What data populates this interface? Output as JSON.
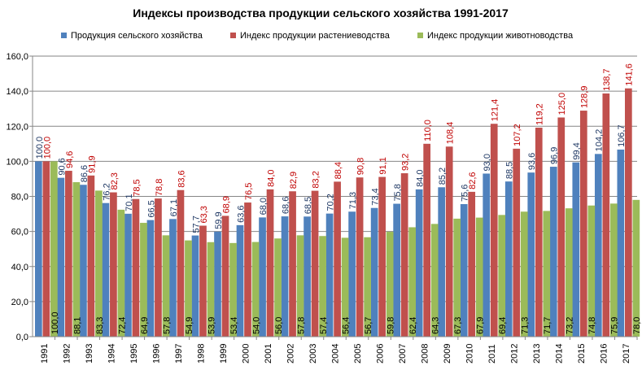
{
  "chart_data": {
    "type": "bar",
    "title": "Индексы производства продукции сельского хозяйства 1991-2017",
    "xlabel": "",
    "ylabel": "",
    "ylim": [
      0,
      160
    ],
    "yticks": [
      "0,0",
      "20,0",
      "40,0",
      "60,0",
      "80,0",
      "100,0",
      "120,0",
      "140,0",
      "160,0"
    ],
    "grid": true,
    "legend_position": "top",
    "categories": [
      "1991",
      "1992",
      "1993",
      "1994",
      "1995",
      "1996",
      "1997",
      "1998",
      "1999",
      "2000",
      "2001",
      "2002",
      "2003",
      "2004",
      "2005",
      "2006",
      "2007",
      "2008",
      "2009",
      "2010",
      "2011",
      "2012",
      "2013",
      "2014",
      "2015",
      "2016",
      "2017"
    ],
    "series": [
      {
        "name": "Продукция сельского хозяйства",
        "color": "#4f81bd",
        "label_color": "#1f3864",
        "values": [
          100.0,
          90.6,
          86.6,
          76.2,
          70.1,
          66.5,
          67.1,
          57.7,
          59.9,
          63.6,
          68.0,
          68.6,
          68.5,
          70.2,
          71.3,
          73.4,
          75.8,
          84.0,
          85.2,
          75.6,
          93.0,
          88.5,
          93.6,
          96.9,
          99.4,
          104.2,
          106.7
        ]
      },
      {
        "name": "Индекс продукции растениеводства",
        "color": "#c0504d",
        "label_color": "#c00000",
        "values": [
          100.0,
          94.6,
          91.9,
          82.3,
          78.5,
          78.8,
          83.6,
          63.3,
          68.9,
          76.5,
          84.0,
          82.9,
          83.2,
          88.4,
          90.8,
          91.1,
          93.2,
          110.0,
          108.4,
          82.6,
          121.4,
          107.2,
          119.2,
          125.0,
          128.9,
          138.7,
          141.6
        ]
      },
      {
        "name": "Индекс продукции животноводства",
        "color": "#9bbb59",
        "label_color": "#000000",
        "values": [
          100.0,
          88.1,
          83.3,
          72.4,
          64.9,
          57.8,
          54.9,
          53.9,
          53.4,
          54.0,
          56.0,
          57.8,
          57.4,
          56.4,
          56.7,
          59.8,
          62.4,
          64.3,
          67.3,
          67.9,
          69.4,
          71.3,
          71.7,
          73.2,
          74.8,
          75.9,
          78.0
        ]
      }
    ]
  }
}
